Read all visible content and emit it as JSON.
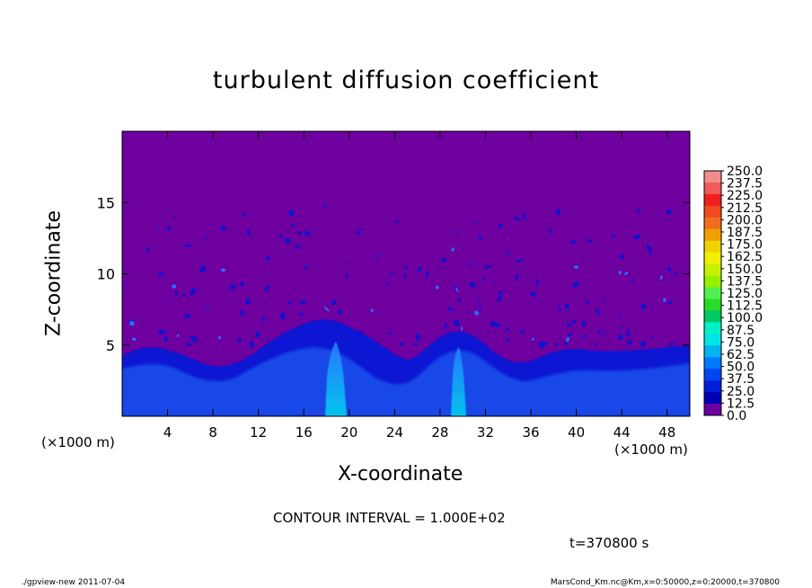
{
  "chart_data": {
    "type": "heatmap",
    "title": "turbulent diffusion coefficient",
    "xlabel": "X-coordinate",
    "ylabel": "Z-coordinate",
    "x_unit_label": "(×1000 m)",
    "x_ticks": [
      4,
      8,
      12,
      16,
      20,
      24,
      28,
      32,
      36,
      40,
      44,
      48
    ],
    "y_ticks": [
      5,
      10,
      15
    ],
    "xlim": [
      0,
      50
    ],
    "ylim": [
      0,
      20
    ],
    "colorbar": {
      "levels": [
        "250.0",
        "237.5",
        "225.0",
        "212.5",
        "200.0",
        "187.5",
        "175.0",
        "162.5",
        "150.0",
        "137.5",
        "125.0",
        "112.5",
        "100.0",
        "87.5",
        "75.0",
        "62.5",
        "50.0",
        "37.5",
        "25.0",
        "12.5",
        "0.0"
      ],
      "colors": [
        "#f08c8c",
        "#f05a5a",
        "#f01e1e",
        "#f04a1e",
        "#f06e1e",
        "#f0a000",
        "#f0d200",
        "#f0f000",
        "#c8f000",
        "#96f000",
        "#50f050",
        "#28dc28",
        "#00c864",
        "#00f0c8",
        "#00e6e6",
        "#00b4f0",
        "#0078ff",
        "#0046f0",
        "#001edc",
        "#0000b4",
        "#6e00a0"
      ]
    },
    "contour_interval": "CONTOUR INTERVAL = 1.000E+02",
    "time_label": "t=370800 s",
    "footer_left": "./gpview-new   2011-07-04",
    "footer_right": "MarsCond_Km.nc@Km,x=0:50000,z=0:20000,t=370800",
    "colors": {
      "background": "#6e00a0",
      "turbulence_deep": "#0a14d2",
      "turbulence_bright": "#00c8e6"
    }
  }
}
